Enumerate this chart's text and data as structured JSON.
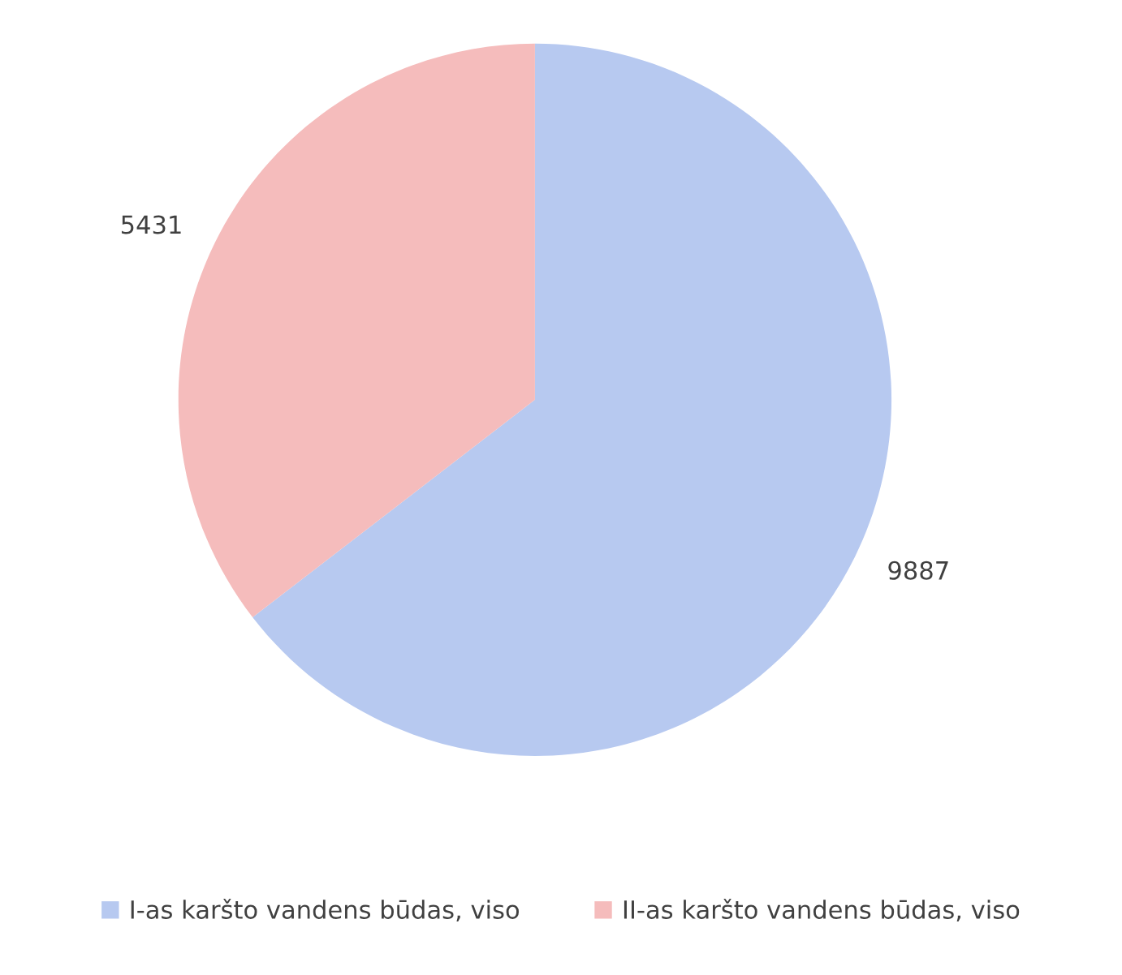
{
  "chart_data": {
    "type": "pie",
    "categories": [
      "I-as karšto vandens būdas, viso",
      "II-as karšto vandens būdas, viso"
    ],
    "values": [
      9887,
      5431
    ],
    "colors": [
      "#b7c9f0",
      "#f5bcbc"
    ],
    "data_labels": true,
    "legend": "bottom"
  }
}
